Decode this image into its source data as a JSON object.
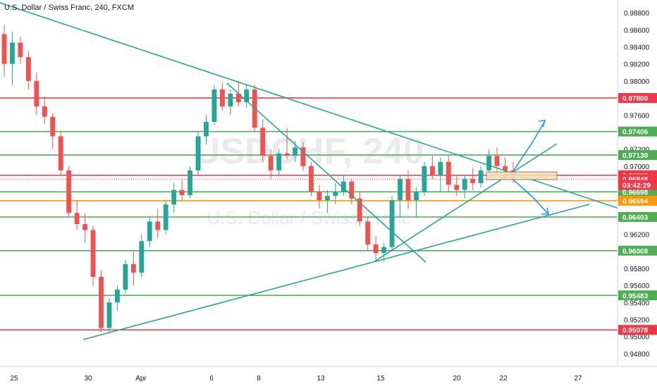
{
  "chart_data": {
    "type": "candlestick",
    "title": "U.S. Dollar / Swiss Franc, 240, FXCM",
    "watermark": {
      "symbol": "USDCHF, 240",
      "name": "U.S. Dollar / Swiss Franc"
    },
    "ylim": [
      0.9465,
      0.9895
    ],
    "y_ticks": [
      "0.98800",
      "0.98600",
      "0.98400",
      "0.98200",
      "0.98000",
      "0.97600",
      "0.97200",
      "0.97000",
      "0.96600",
      "0.96200",
      "0.95800",
      "0.95600",
      "0.95400",
      "0.95200",
      "0.95000",
      "0.94800"
    ],
    "x_ticks": [
      "25",
      "30",
      "Apr",
      "6",
      "8",
      "13",
      "15",
      "20",
      "22",
      "27"
    ],
    "horizontal_levels": [
      {
        "value": 0.978,
        "label": "0.97800",
        "color": "#f23645"
      },
      {
        "value": 0.97406,
        "label": "0.97406",
        "color": "#4caf50"
      },
      {
        "value": 0.9713,
        "label": "0.97130",
        "color": "#4caf50"
      },
      {
        "value": 0.96893,
        "label": "0.96893",
        "color": "#f23645"
      },
      {
        "value": 0.96698,
        "label": "0.96698",
        "color": "#4caf50"
      },
      {
        "value": 0.96594,
        "label": "0.96594",
        "color": "#ff9800"
      },
      {
        "value": 0.96403,
        "label": "0.96403",
        "color": "#4caf50"
      },
      {
        "value": 0.96008,
        "label": "0.96008",
        "color": "#4caf50"
      },
      {
        "value": 0.95483,
        "label": "0.95483",
        "color": "#4caf50"
      },
      {
        "value": 0.95078,
        "label": "0.95078",
        "color": "#f23645"
      }
    ],
    "price_tags": [
      {
        "value": 0.96848,
        "label": "0.96848",
        "color": "#f23645"
      },
      {
        "value": 0.9678,
        "label": "03:42:29",
        "color": "#f23645"
      }
    ],
    "colors": {
      "up": "#26a69a",
      "down": "#ef5350",
      "trendline": "#26a69a",
      "arrow": "#2196f3",
      "box": "#f5deb3"
    },
    "candles": [
      [
        0.9855,
        0.9866,
        0.9805,
        0.982
      ],
      [
        0.982,
        0.9858,
        0.9795,
        0.9845
      ],
      [
        0.9845,
        0.9852,
        0.982,
        0.9828
      ],
      [
        0.9828,
        0.9835,
        0.979,
        0.98
      ],
      [
        0.98,
        0.981,
        0.976,
        0.977
      ],
      [
        0.977,
        0.9782,
        0.975,
        0.9758
      ],
      [
        0.9758,
        0.9762,
        0.972,
        0.9735
      ],
      [
        0.9735,
        0.974,
        0.969,
        0.9695
      ],
      [
        0.9695,
        0.97,
        0.964,
        0.9645
      ],
      [
        0.9645,
        0.966,
        0.9625,
        0.9632
      ],
      [
        0.9632,
        0.9645,
        0.961,
        0.9625
      ],
      [
        0.9625,
        0.963,
        0.956,
        0.957
      ],
      [
        0.957,
        0.9578,
        0.9505,
        0.951
      ],
      [
        0.951,
        0.9545,
        0.9505,
        0.954
      ],
      [
        0.954,
        0.956,
        0.953,
        0.9555
      ],
      [
        0.9555,
        0.959,
        0.955,
        0.9585
      ],
      [
        0.9585,
        0.96,
        0.956,
        0.9575
      ],
      [
        0.9575,
        0.962,
        0.957,
        0.9612
      ],
      [
        0.9612,
        0.964,
        0.9605,
        0.9635
      ],
      [
        0.9635,
        0.965,
        0.9615,
        0.9625
      ],
      [
        0.9625,
        0.966,
        0.962,
        0.9655
      ],
      [
        0.9655,
        0.968,
        0.9645,
        0.9672
      ],
      [
        0.9672,
        0.9685,
        0.966,
        0.9666
      ],
      [
        0.9666,
        0.97,
        0.9662,
        0.9695
      ],
      [
        0.9695,
        0.974,
        0.969,
        0.9735
      ],
      [
        0.9735,
        0.976,
        0.9725,
        0.9752
      ],
      [
        0.9752,
        0.9795,
        0.9748,
        0.979
      ],
      [
        0.979,
        0.9798,
        0.9765,
        0.977
      ],
      [
        0.977,
        0.979,
        0.976,
        0.9785
      ],
      [
        0.9785,
        0.98,
        0.977,
        0.9775
      ],
      [
        0.9775,
        0.9795,
        0.9768,
        0.979
      ],
      [
        0.979,
        0.9796,
        0.974,
        0.9745
      ],
      [
        0.9745,
        0.9755,
        0.9705,
        0.9712
      ],
      [
        0.9712,
        0.972,
        0.9685,
        0.9695
      ],
      [
        0.9695,
        0.972,
        0.9688,
        0.9715
      ],
      [
        0.9715,
        0.9745,
        0.9708,
        0.9712
      ],
      [
        0.9712,
        0.973,
        0.9705,
        0.9722
      ],
      [
        0.9722,
        0.9728,
        0.9695,
        0.97
      ],
      [
        0.97,
        0.9705,
        0.9665,
        0.967
      ],
      [
        0.967,
        0.9678,
        0.965,
        0.966
      ],
      [
        0.966,
        0.9672,
        0.9645,
        0.9665
      ],
      [
        0.9665,
        0.968,
        0.9655,
        0.967
      ],
      [
        0.967,
        0.969,
        0.9665,
        0.9682
      ],
      [
        0.9682,
        0.9685,
        0.9655,
        0.9662
      ],
      [
        0.9662,
        0.967,
        0.963,
        0.9635
      ],
      [
        0.9635,
        0.964,
        0.96,
        0.9608
      ],
      [
        0.9608,
        0.9618,
        0.959,
        0.9598
      ],
      [
        0.9598,
        0.961,
        0.9588,
        0.9605
      ],
      [
        0.9605,
        0.9665,
        0.96,
        0.966
      ],
      [
        0.966,
        0.969,
        0.964,
        0.9685
      ],
      [
        0.9685,
        0.9695,
        0.965,
        0.966
      ],
      [
        0.966,
        0.9675,
        0.964,
        0.967
      ],
      [
        0.967,
        0.9705,
        0.9665,
        0.97
      ],
      [
        0.97,
        0.9712,
        0.9685,
        0.969
      ],
      [
        0.969,
        0.971,
        0.967,
        0.9705
      ],
      [
        0.9705,
        0.9712,
        0.967,
        0.9678
      ],
      [
        0.9678,
        0.9688,
        0.9665,
        0.9672
      ],
      [
        0.9672,
        0.969,
        0.9662,
        0.9685
      ],
      [
        0.9685,
        0.9698,
        0.9672,
        0.968
      ],
      [
        0.968,
        0.97,
        0.9675,
        0.9695
      ],
      [
        0.9695,
        0.972,
        0.9685,
        0.9712
      ],
      [
        0.9712,
        0.9722,
        0.969,
        0.97
      ],
      [
        0.97,
        0.971,
        0.9685,
        0.9695
      ],
      [
        0.9695,
        0.9705,
        0.968,
        0.9685
      ]
    ]
  }
}
